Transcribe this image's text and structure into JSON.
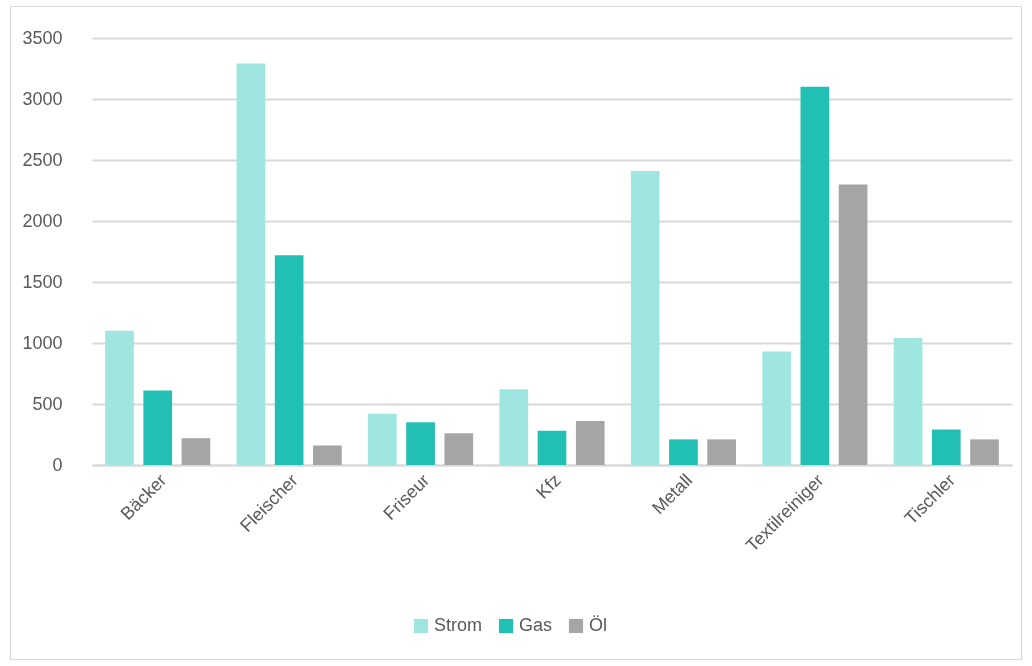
{
  "chart_data": {
    "type": "bar",
    "categories": [
      "Bäcker",
      "Fleischer",
      "Friseur",
      "Kfz",
      "Metall",
      "Textilreiniger",
      "Tischler"
    ],
    "series": [
      {
        "name": "Strom",
        "color": "#a0e6e0",
        "values": [
          1100,
          3290,
          420,
          620,
          2410,
          930,
          1040
        ]
      },
      {
        "name": "Gas",
        "color": "#22bfb4",
        "values": [
          610,
          1720,
          350,
          280,
          210,
          3100,
          290
        ]
      },
      {
        "name": "Öl",
        "color": "#a5a5a5",
        "values": [
          220,
          160,
          260,
          360,
          210,
          2300,
          210
        ]
      }
    ],
    "ylim": [
      0,
      3500
    ],
    "yticks": [
      0,
      500,
      1000,
      1500,
      2000,
      2500,
      3000,
      3500
    ],
    "grid": "y",
    "legend": "bottom"
  }
}
